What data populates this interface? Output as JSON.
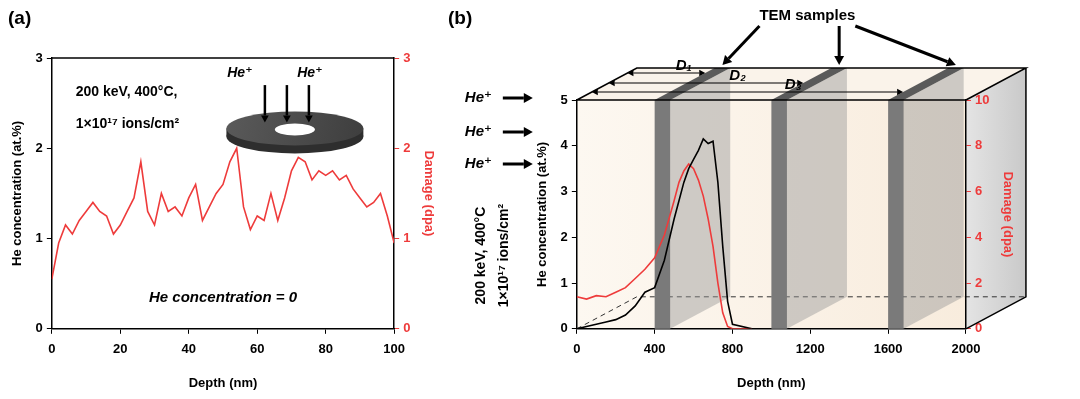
{
  "chart_data": [
    {
      "type": "line",
      "panel_label": "(a)",
      "xlabel": "Depth (nm)",
      "ylabel": "He concentration (at.%)",
      "y2label": "Damage (dpa)",
      "x": [
        0,
        2,
        4,
        6,
        8,
        10,
        12,
        14,
        16,
        18,
        20,
        22,
        24,
        26,
        28,
        30,
        32,
        34,
        36,
        38,
        40,
        42,
        44,
        46,
        48,
        50,
        52,
        54,
        56,
        58,
        60,
        62,
        64,
        66,
        68,
        70,
        72,
        74,
        76,
        78,
        80,
        82,
        84,
        86,
        88,
        90,
        92,
        94,
        96,
        98,
        100
      ],
      "series": [
        {
          "color": "#000000",
          "values": [
            0,
            0,
            0,
            0,
            0,
            0,
            0,
            0,
            0,
            0,
            0,
            0,
            0,
            0,
            0,
            0,
            0,
            0,
            0,
            0,
            0,
            0,
            0,
            0,
            0,
            0,
            0,
            0,
            0,
            0,
            0,
            0,
            0,
            0,
            0,
            0,
            0,
            0,
            0,
            0,
            0,
            0,
            0,
            0,
            0,
            0,
            0,
            0,
            0,
            0,
            0
          ]
        },
        {
          "color": "#ee3b3b",
          "axis": "y2",
          "values": [
            0.55,
            0.95,
            1.15,
            1.05,
            1.2,
            1.3,
            1.4,
            1.3,
            1.25,
            1.05,
            1.15,
            1.3,
            1.45,
            1.85,
            1.3,
            1.15,
            1.5,
            1.3,
            1.35,
            1.25,
            1.45,
            1.6,
            1.2,
            1.35,
            1.5,
            1.6,
            1.85,
            2.0,
            1.35,
            1.1,
            1.25,
            1.2,
            1.5,
            1.2,
            1.45,
            1.75,
            1.9,
            1.85,
            1.65,
            1.75,
            1.7,
            1.75,
            1.65,
            1.7,
            1.55,
            1.45,
            1.35,
            1.4,
            1.5,
            1.25,
            0.95
          ]
        }
      ],
      "xlim": [
        0,
        100
      ],
      "xticks": [
        0,
        20,
        40,
        60,
        80,
        100
      ],
      "ylim": [
        0,
        3
      ],
      "yticks": [
        0,
        1,
        2,
        3
      ],
      "y2lim": [
        0,
        3
      ],
      "y2ticks": [
        0,
        1,
        2,
        3
      ],
      "grid": false,
      "conditions": [
        "200 keV, 400°C,",
        "1×10¹⁷ ions/cm²"
      ],
      "note": "He concentration = 0",
      "ion_labels": [
        "He⁺",
        "He⁺"
      ]
    },
    {
      "type": "line",
      "panel_label": "(b)",
      "xlabel": "Depth (nm)",
      "ylabel": "He concentration (at.%)",
      "y2label": "Damage (dpa)",
      "x": [
        0,
        50,
        100,
        150,
        200,
        250,
        300,
        350,
        400,
        450,
        500,
        525,
        550,
        575,
        600,
        625,
        650,
        675,
        700,
        725,
        750,
        775,
        800,
        900
      ],
      "series": [
        {
          "color": "#000000",
          "values": [
            0,
            0.05,
            0.1,
            0.15,
            0.2,
            0.3,
            0.5,
            0.8,
            0.9,
            1.5,
            2.4,
            2.8,
            3.2,
            3.5,
            3.7,
            3.9,
            4.15,
            4.05,
            4.1,
            3.2,
            1.8,
            0.6,
            0.1,
            0
          ]
        },
        {
          "color": "#ee3b3b",
          "axis": "y2",
          "values": [
            1.4,
            1.3,
            1.45,
            1.4,
            1.6,
            1.8,
            2.2,
            2.6,
            3.1,
            4.1,
            5.6,
            6.4,
            6.9,
            7.2,
            7.0,
            6.5,
            5.8,
            4.8,
            3.6,
            2.0,
            0.7,
            0.1,
            0,
            0
          ]
        }
      ],
      "xlim": [
        0,
        2000
      ],
      "xticks": [
        0,
        400,
        800,
        1200,
        1600,
        2000
      ],
      "ylim": [
        0,
        5
      ],
      "yticks": [
        0,
        1,
        2,
        3,
        4,
        5
      ],
      "y2lim": [
        0,
        10
      ],
      "y2ticks": [
        0,
        2,
        4,
        6,
        8,
        10
      ],
      "grid": false,
      "conditions": [
        "200 keV, 400°C",
        "1×10¹⁷ ions/cm²"
      ],
      "ion_labels": [
        "He⁺",
        "He⁺",
        "He⁺"
      ],
      "samples_title": "TEM samples",
      "samples": {
        "labels": [
          "D₁",
          "D₂",
          "D₃"
        ],
        "depth": [
          [
            400,
            480
          ],
          [
            1000,
            1080
          ],
          [
            1600,
            1680
          ]
        ]
      }
    }
  ]
}
